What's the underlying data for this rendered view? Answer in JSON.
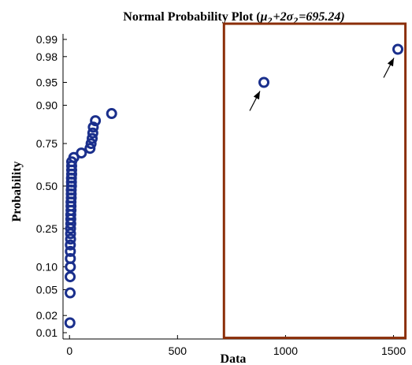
{
  "chart_data": {
    "type": "scatter",
    "title_prefix": "Normal Probability Plot (",
    "title_mu": "μ",
    "title_sub1": "2",
    "title_mid": "+2σ",
    "title_sub2": "2",
    "title_suffix": "=695.24)",
    "xlabel": "Data",
    "ylabel": "Probability",
    "xlim": [
      -30,
      1560
    ],
    "x_ticks": [
      {
        "value": 0,
        "label": "0"
      },
      {
        "value": 500,
        "label": "500"
      },
      {
        "value": 1000,
        "label": "1000"
      },
      {
        "value": 1500,
        "label": "1500"
      }
    ],
    "y_ticks": [
      {
        "value": 0.01,
        "label": "0.01"
      },
      {
        "value": 0.02,
        "label": "0.02"
      },
      {
        "value": 0.05,
        "label": "0.05"
      },
      {
        "value": 0.1,
        "label": "0.10"
      },
      {
        "value": 0.25,
        "label": "0.25"
      },
      {
        "value": 0.5,
        "label": "0.50"
      },
      {
        "value": 0.75,
        "label": "0.75"
      },
      {
        "value": 0.9,
        "label": "0.90"
      },
      {
        "value": 0.95,
        "label": "0.95"
      },
      {
        "value": 0.98,
        "label": "0.98"
      },
      {
        "value": 0.99,
        "label": "0.99"
      }
    ],
    "points": [
      {
        "x": 2,
        "y": 0.015
      },
      {
        "x": 3,
        "y": 0.045
      },
      {
        "x": 3,
        "y": 0.075
      },
      {
        "x": 4,
        "y": 0.1
      },
      {
        "x": 4,
        "y": 0.125
      },
      {
        "x": 4,
        "y": 0.15
      },
      {
        "x": 4,
        "y": 0.175
      },
      {
        "x": 5,
        "y": 0.2
      },
      {
        "x": 5,
        "y": 0.225
      },
      {
        "x": 5,
        "y": 0.25
      },
      {
        "x": 6,
        "y": 0.275
      },
      {
        "x": 6,
        "y": 0.3
      },
      {
        "x": 6,
        "y": 0.325
      },
      {
        "x": 7,
        "y": 0.35
      },
      {
        "x": 7,
        "y": 0.375
      },
      {
        "x": 7,
        "y": 0.4
      },
      {
        "x": 8,
        "y": 0.425
      },
      {
        "x": 8,
        "y": 0.45
      },
      {
        "x": 8,
        "y": 0.475
      },
      {
        "x": 9,
        "y": 0.5
      },
      {
        "x": 9,
        "y": 0.525
      },
      {
        "x": 9,
        "y": 0.55
      },
      {
        "x": 10,
        "y": 0.575
      },
      {
        "x": 10,
        "y": 0.6
      },
      {
        "x": 10,
        "y": 0.625
      },
      {
        "x": 10,
        "y": 0.65
      },
      {
        "x": 20,
        "y": 0.675
      },
      {
        "x": 55,
        "y": 0.7
      },
      {
        "x": 95,
        "y": 0.725
      },
      {
        "x": 100,
        "y": 0.75
      },
      {
        "x": 105,
        "y": 0.775
      },
      {
        "x": 108,
        "y": 0.8
      },
      {
        "x": 110,
        "y": 0.825
      },
      {
        "x": 120,
        "y": 0.85
      },
      {
        "x": 195,
        "y": 0.875
      },
      {
        "x": 900,
        "y": 0.95
      },
      {
        "x": 1520,
        "y": 0.985
      }
    ],
    "highlight": {
      "x_range": [
        715,
        1555
      ],
      "y_range": [
        0.008,
        0.995
      ]
    },
    "annotated_points": [
      {
        "x": 900,
        "y": 0.95
      },
      {
        "x": 1520,
        "y": 0.985
      }
    ],
    "colors": {
      "marker": "#1a2f8c",
      "highlight": "#8b2e08",
      "axis": "#000000"
    },
    "grid": false,
    "legend": "none"
  }
}
